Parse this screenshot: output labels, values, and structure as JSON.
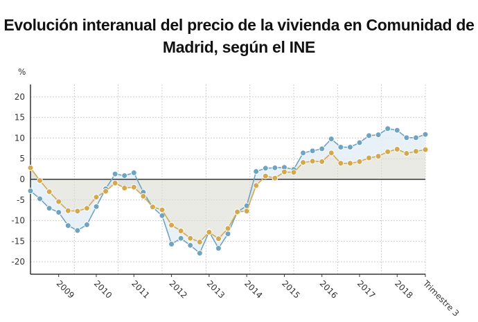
{
  "chart_data": {
    "type": "line",
    "title": "Evolución interanual del precio de la vivienda en Comunidad de Madrid, según el INE",
    "ylabel": "%",
    "xlabel": "",
    "ylim": [
      -23,
      23
    ],
    "yticks": [
      20,
      15,
      10,
      5,
      0,
      -5,
      -10,
      -15,
      -20
    ],
    "grid": true,
    "legend": "none",
    "x_tick_labels": [
      "2009",
      "2010",
      "2011",
      "2012",
      "2013",
      "2014",
      "2015",
      "2016",
      "2017",
      "2018",
      "Trimestre 3"
    ],
    "x": [
      "2008T2",
      "2008T3",
      "2008T4",
      "2009T1",
      "2009T2",
      "2009T3",
      "2009T4",
      "2010T1",
      "2010T2",
      "2010T3",
      "2010T4",
      "2011T1",
      "2011T2",
      "2011T3",
      "2011T4",
      "2012T1",
      "2012T2",
      "2012T3",
      "2012T4",
      "2013T1",
      "2013T2",
      "2013T3",
      "2013T4",
      "2014T1",
      "2014T2",
      "2014T3",
      "2014T4",
      "2015T1",
      "2015T2",
      "2015T3",
      "2015T4",
      "2016T1",
      "2016T2",
      "2016T3",
      "2016T4",
      "2017T1",
      "2017T2",
      "2017T3",
      "2017T4",
      "2018T1",
      "2018T2",
      "2018T3",
      "2018T4"
    ],
    "series": [
      {
        "color": "#6fa3c0",
        "values": [
          -2.8,
          -4.7,
          -7,
          -8,
          -11.2,
          -12.4,
          -11,
          -6.6,
          -2.3,
          1.3,
          0.9,
          1.6,
          -3.1,
          -6.8,
          -8.8,
          -15.7,
          -14.3,
          -16,
          -17.9,
          -12.7,
          -16.7,
          -13.2,
          -7.9,
          -6.4,
          1.9,
          2.7,
          2.8,
          2.9,
          2.4,
          6.4,
          6.9,
          7.4,
          9.8,
          7.8,
          7.8,
          8.9,
          10.6,
          10.8,
          12.3,
          11.9,
          10.1,
          10.1,
          10.9
        ]
      },
      {
        "color": "#d4a84f",
        "values": [
          2.8,
          -0.3,
          -3,
          -5.4,
          -7.6,
          -7.7,
          -7,
          -4.3,
          -2.9,
          -0.9,
          -2.1,
          -1.9,
          -4.1,
          -6.7,
          -7.4,
          -11.1,
          -12.5,
          -14.3,
          -15.2,
          -12.8,
          -14.4,
          -11.9,
          -7.9,
          -7.7,
          -1.5,
          0.8,
          0.3,
          1.8,
          1.7,
          4.1,
          4.4,
          4.3,
          6.4,
          3.9,
          3.9,
          4.3,
          5.2,
          5.6,
          6.7,
          7.3,
          6.3,
          6.8,
          7.2
        ]
      }
    ],
    "colors": {
      "between_fill": "#e3eef6",
      "zero_fill": "#dcdcd4",
      "zero_line": "#333333"
    }
  }
}
